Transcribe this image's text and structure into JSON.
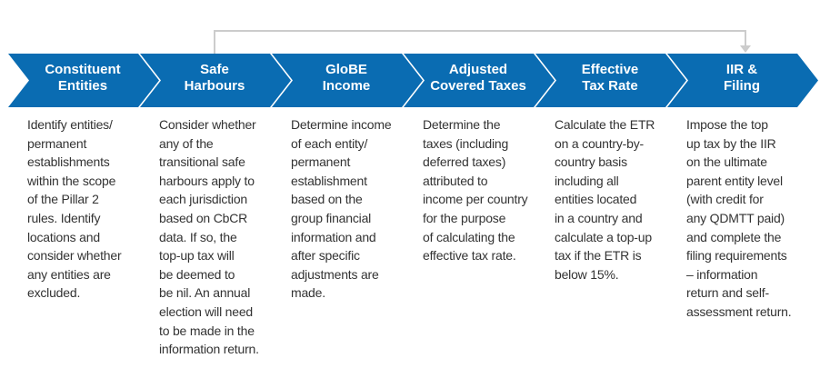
{
  "colors": {
    "chevron": "#0a6cb2",
    "chevron_text": "#ffffff",
    "bracket": "#cccccc",
    "body_text": "#333333"
  },
  "steps": [
    {
      "title": [
        "Constituent",
        "Entities"
      ],
      "lines": [
        "Identify entities/",
        "permanent",
        "establishments",
        "within the scope",
        "of the Pillar 2",
        "rules. Identify",
        "locations and",
        "consider whether",
        "any entities are",
        "excluded."
      ]
    },
    {
      "title": [
        "Safe",
        "Harbours"
      ],
      "lines": [
        "Consider whether",
        "any of the",
        "transitional safe",
        "harbours apply to",
        "each jurisdiction",
        "based on CbCR",
        "data. If so, the",
        "top-up tax will",
        "be deemed to",
        "be nil. An annual",
        "election will need",
        "to be made in the",
        "information return."
      ]
    },
    {
      "title": [
        "GloBE",
        "Income"
      ],
      "lines": [
        "Determine income",
        "of each entity/",
        "permanent",
        "establishment",
        "based on the",
        "group financial",
        "information and",
        "after specific",
        "adjustments are",
        "made."
      ]
    },
    {
      "title": [
        "Adjusted",
        "Covered Taxes"
      ],
      "lines": [
        "Determine the",
        "taxes (including",
        "deferred taxes)",
        "attributed to",
        "income per country",
        "for the purpose",
        "of calculating the",
        "effective tax rate."
      ]
    },
    {
      "title": [
        "Effective",
        "Tax Rate"
      ],
      "lines": [
        "Calculate the ETR",
        "on a country-by-",
        "country basis",
        "including all",
        "entities located",
        "in a country and",
        "calculate a top-up",
        "tax if the ETR is",
        "below 15%."
      ]
    },
    {
      "title": [
        "IIR &",
        "Filing"
      ],
      "lines": [
        "Impose the top",
        "up tax by the IIR",
        "on the ultimate",
        "parent entity level",
        "(with credit for",
        "any QDMTT paid)",
        "and complete the",
        "filing requirements",
        "– information",
        "return and self-",
        "assessment return."
      ]
    }
  ]
}
